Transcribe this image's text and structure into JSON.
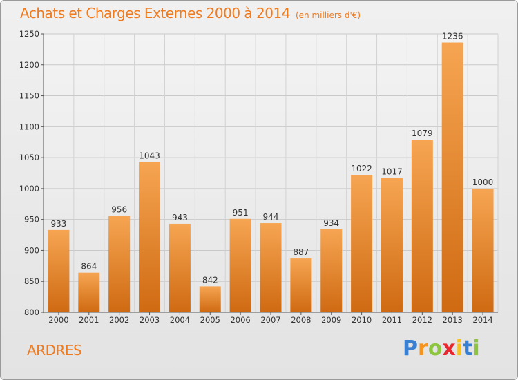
{
  "chart_data": {
    "type": "bar",
    "title": "Achats et Charges Externes 2000 à 2014",
    "subtitle": "(en milliers d'€)",
    "categories": [
      "2000",
      "2001",
      "2002",
      "2003",
      "2004",
      "2005",
      "2006",
      "2007",
      "2008",
      "2009",
      "2010",
      "2011",
      "2012",
      "2013",
      "2014"
    ],
    "values": [
      933,
      864,
      956,
      1043,
      943,
      842,
      951,
      944,
      887,
      934,
      1022,
      1017,
      1079,
      1236,
      1000
    ],
    "ylim": [
      800,
      1250
    ],
    "yticks": [
      800,
      850,
      900,
      950,
      1000,
      1050,
      1100,
      1150,
      1200,
      1250
    ],
    "grid": true,
    "bar_color": "#f08a2a"
  },
  "location": "ARDRES",
  "logo": {
    "letters": [
      "P",
      "r",
      "o",
      "x",
      "i",
      "t",
      "i"
    ],
    "colors": [
      "#3b7fd0",
      "#f7941e",
      "#8cc63f",
      "#e8262d",
      "#f7c21e",
      "#3b7fd0",
      "#8cc63f"
    ]
  }
}
